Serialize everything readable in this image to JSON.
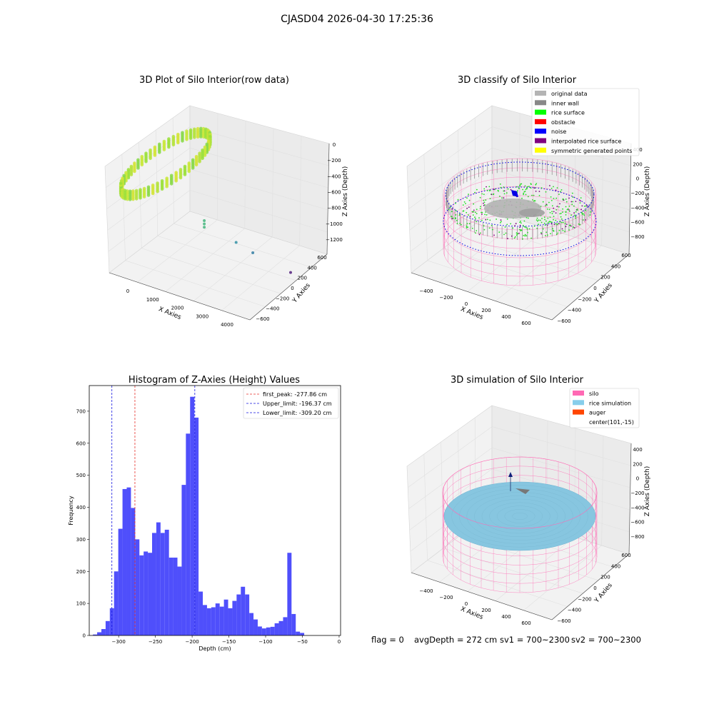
{
  "suptitle": "CJASD04 2026-04-30 17:25:36",
  "footer": {
    "flag": "flag = 0",
    "avg_depth": "avgDepth = 272 cm",
    "sv1": "sv1 = 700~2300",
    "sv2": "sv2 = 700~2300"
  },
  "colors": {
    "hist_bar": "#4f4ffb",
    "peak_line": "#e8302a",
    "limit_line": "#1515e0",
    "green_surface": "#22dd22",
    "inner_wall": "#888888",
    "noise": "#0000e6",
    "silo": "#ff69b4",
    "rice_sim": "#87c6e0",
    "auger": "#ff4500",
    "interp": "#800080",
    "sym": "#ffff00",
    "orig": "#b4b4b4"
  },
  "chart_data": [
    {
      "type": "scatter",
      "title": "3D Plot of Silo Interior(row data)",
      "xlabel": "X Axies",
      "ylabel": "Y Axies",
      "zlabel": "Z Axies (Depth)",
      "x_ticks": [
        "0",
        "1000",
        "2000",
        "3000",
        "4000"
      ],
      "y_ticks": [
        "600",
        "400",
        "200",
        "0",
        "−200",
        "−400",
        "−600"
      ],
      "z_ticks": [
        "0",
        "−200",
        "−400",
        "−600",
        "−800",
        "−1000",
        "−1200"
      ],
      "xlim": [
        -400,
        4300
      ],
      "ylim": [
        -650,
        650
      ],
      "zlim": [
        -1250,
        50
      ],
      "ring": {
        "center": [
          100,
          -15
        ],
        "radius": 650,
        "z_range": [
          -300,
          -200
        ]
      },
      "outliers": [
        {
          "x": 2050,
          "y": 300,
          "z": -520,
          "color": "#5fbf8f"
        },
        {
          "x": 2050,
          "y": 300,
          "z": -560,
          "color": "#5fbf8f"
        },
        {
          "x": 2050,
          "y": 300,
          "z": -600,
          "color": "#5fbf8f"
        },
        {
          "x": 2700,
          "y": 100,
          "z": -820,
          "color": "#4f9fb0"
        },
        {
          "x": 3050,
          "y": 0,
          "z": -960,
          "color": "#4f8faf"
        },
        {
          "x": 4000,
          "y": -150,
          "z": -1170,
          "color": "#6a3f8f"
        }
      ]
    },
    {
      "type": "scatter",
      "title": "3D classify of Silo Interior",
      "xlabel": "X Axies",
      "ylabel": "Y Axies",
      "zlabel": "Z Axies (Depth)",
      "x_ticks": [
        "−400",
        "−200",
        "0",
        "200",
        "400",
        "600"
      ],
      "y_ticks": [
        "600",
        "400",
        "200",
        "0",
        "−200",
        "−400",
        "−600"
      ],
      "z_ticks": [
        "400",
        "200",
        "0",
        "−200",
        "−400",
        "−600",
        "−800"
      ],
      "legend": [
        "original data",
        "inner wall",
        "rice surface",
        "obstacle",
        "noise",
        "interpolated rice surface",
        "symmetric generated points"
      ],
      "legend_colors": [
        "#b4b4b4",
        "#888888",
        "#00ff00",
        "#ff0000",
        "#0000ff",
        "#800080",
        "#ffff00"
      ]
    },
    {
      "type": "bar",
      "title": "Histogram of Z-Axies (Height) Values",
      "xlabel": "Depth (cm)",
      "ylabel": "Frequency",
      "xlim": [
        -340,
        2
      ],
      "ylim": [
        0,
        780
      ],
      "x_ticks": [
        -300,
        -250,
        -200,
        -150,
        -100,
        -50,
        0
      ],
      "y_ticks": [
        0,
        100,
        200,
        300,
        400,
        500,
        600,
        700
      ],
      "bin_start": -335,
      "bin_width": 5.75,
      "values": [
        3,
        10,
        20,
        45,
        85,
        200,
        333,
        457,
        462,
        398,
        300,
        250,
        262,
        258,
        320,
        353,
        320,
        330,
        243,
        243,
        215,
        470,
        630,
        745,
        680,
        137,
        95,
        85,
        88,
        100,
        90,
        112,
        85,
        108,
        128,
        152,
        128,
        70,
        50,
        28,
        22,
        25,
        27,
        38,
        45,
        57,
        258,
        67,
        12,
        8
      ],
      "lines": [
        {
          "name": "first_peak: -277.86 cm",
          "x": -277.86,
          "style": "peak"
        },
        {
          "name": "Upper_limit: -196.37 cm",
          "x": -196.37,
          "style": "limit"
        },
        {
          "name": "Lower_limit: -309.20 cm",
          "x": -309.2,
          "style": "limit"
        }
      ]
    },
    {
      "type": "scatter",
      "title": "3D simulation of Silo Interior",
      "xlabel": "X Axies",
      "ylabel": "Y Axies",
      "zlabel": "Z Axies (Depth)",
      "x_ticks": [
        "−400",
        "−200",
        "0",
        "200",
        "400",
        "600"
      ],
      "y_ticks": [
        "600",
        "400",
        "200",
        "0",
        "−200",
        "−400",
        "−600"
      ],
      "z_ticks": [
        "400",
        "200",
        "0",
        "−200",
        "−400",
        "−600",
        "−800"
      ],
      "legend": [
        "silo",
        "rice simulation",
        "auger",
        "center(101,-15)"
      ],
      "legend_colors": [
        "#ff69b4",
        "#87ceeb",
        "#ff4500",
        ""
      ]
    }
  ]
}
